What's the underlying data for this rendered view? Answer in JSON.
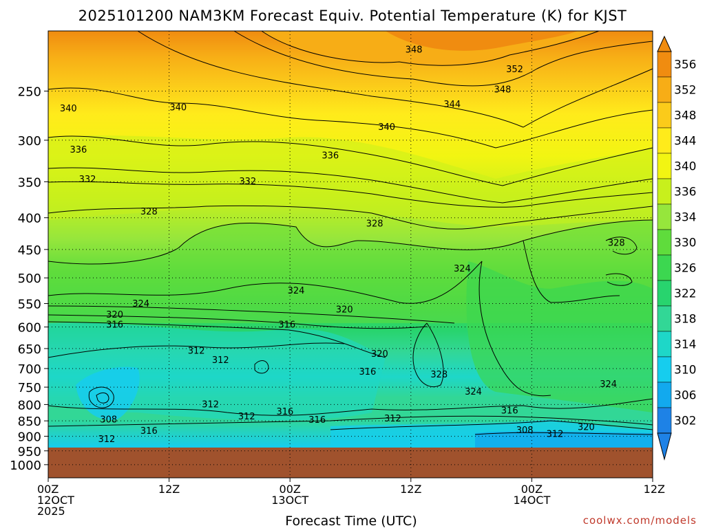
{
  "chart_data": {
    "type": "heatmap",
    "title": "2025101200 NAM3KM Forecast Equiv. Potential Temperature (K) for KJST",
    "xlabel": "Forecast Time (UTC)",
    "ylabel": "",
    "x_ticks": [
      {
        "hour": 0,
        "lines": [
          "00Z",
          "12OCT",
          "2025"
        ]
      },
      {
        "hour": 12,
        "lines": [
          "12Z"
        ]
      },
      {
        "hour": 24,
        "lines": [
          "00Z",
          "13OCT"
        ]
      },
      {
        "hour": 36,
        "lines": [
          "12Z"
        ]
      },
      {
        "hour": 48,
        "lines": [
          "00Z",
          "14OCT"
        ]
      },
      {
        "hour": 60,
        "lines": [
          "12Z"
        ]
      }
    ],
    "xlim": [
      0,
      60
    ],
    "y_ticks": [
      "250",
      "300",
      "350",
      "400",
      "450",
      "500",
      "550",
      "600",
      "650",
      "700",
      "750",
      "800",
      "850",
      "900",
      "950",
      "1000"
    ],
    "ylim": [
      1050,
      200
    ],
    "y_scale": "log-pressure",
    "grid": true,
    "colorbar": {
      "levels": [
        "356",
        "352",
        "348",
        "344",
        "340",
        "336",
        "334",
        "330",
        "326",
        "322",
        "318",
        "314",
        "310",
        "306",
        "302"
      ],
      "colors": [
        "#f08c10",
        "#f7ad16",
        "#fbcb1a",
        "#ffeb1b",
        "#f2f512",
        "#c8f01c",
        "#96e63c",
        "#5fdc3c",
        "#3cd750",
        "#28d46e",
        "#32d796",
        "#1ed7c8",
        "#16cdee",
        "#12a9ee",
        "#1e82e6"
      ],
      "placement": "right"
    },
    "contour_labels": [
      {
        "t": 36.3,
        "p": 214,
        "v": "348"
      },
      {
        "t": 46.3,
        "p": 230,
        "v": "352"
      },
      {
        "t": 45.1,
        "p": 248,
        "v": "348"
      },
      {
        "t": 40.1,
        "p": 262,
        "v": "344"
      },
      {
        "t": 2.0,
        "p": 266,
        "v": "340"
      },
      {
        "t": 12.9,
        "p": 265,
        "v": "340"
      },
      {
        "t": 33.6,
        "p": 285,
        "v": "340"
      },
      {
        "t": 3.0,
        "p": 310,
        "v": "336"
      },
      {
        "t": 28.0,
        "p": 317,
        "v": "336"
      },
      {
        "t": 3.9,
        "p": 346,
        "v": "332"
      },
      {
        "t": 19.8,
        "p": 349,
        "v": "332"
      },
      {
        "t": 10.0,
        "p": 390,
        "v": "328"
      },
      {
        "t": 32.4,
        "p": 408,
        "v": "328"
      },
      {
        "t": 56.4,
        "p": 438,
        "v": "328"
      },
      {
        "t": 41.1,
        "p": 482,
        "v": "324"
      },
      {
        "t": 24.6,
        "p": 523,
        "v": "324"
      },
      {
        "t": 9.2,
        "p": 549,
        "v": "324"
      },
      {
        "t": 6.6,
        "p": 572,
        "v": "320"
      },
      {
        "t": 29.4,
        "p": 561,
        "v": "320"
      },
      {
        "t": 6.6,
        "p": 594,
        "v": "316"
      },
      {
        "t": 23.7,
        "p": 594,
        "v": "316"
      },
      {
        "t": 14.7,
        "p": 654,
        "v": "312"
      },
      {
        "t": 17.1,
        "p": 677,
        "v": "312"
      },
      {
        "t": 32.9,
        "p": 662,
        "v": "320"
      },
      {
        "t": 31.7,
        "p": 707,
        "v": "316"
      },
      {
        "t": 38.8,
        "p": 714,
        "v": "328"
      },
      {
        "t": 42.2,
        "p": 761,
        "v": "324"
      },
      {
        "t": 55.6,
        "p": 740,
        "v": "324"
      },
      {
        "t": 16.1,
        "p": 798,
        "v": "312"
      },
      {
        "t": 19.7,
        "p": 835,
        "v": "312"
      },
      {
        "t": 23.5,
        "p": 820,
        "v": "316"
      },
      {
        "t": 26.7,
        "p": 845,
        "v": "316"
      },
      {
        "t": 34.2,
        "p": 841,
        "v": "312"
      },
      {
        "t": 45.8,
        "p": 817,
        "v": "316"
      },
      {
        "t": 6.0,
        "p": 844,
        "v": "308"
      },
      {
        "t": 10.0,
        "p": 880,
        "v": "316"
      },
      {
        "t": 5.8,
        "p": 908,
        "v": "312"
      },
      {
        "t": 47.3,
        "p": 878,
        "v": "308"
      },
      {
        "t": 50.3,
        "p": 891,
        "v": "312"
      },
      {
        "t": 53.4,
        "p": 868,
        "v": "320"
      }
    ]
  },
  "watermark": "coolwx.com/models"
}
